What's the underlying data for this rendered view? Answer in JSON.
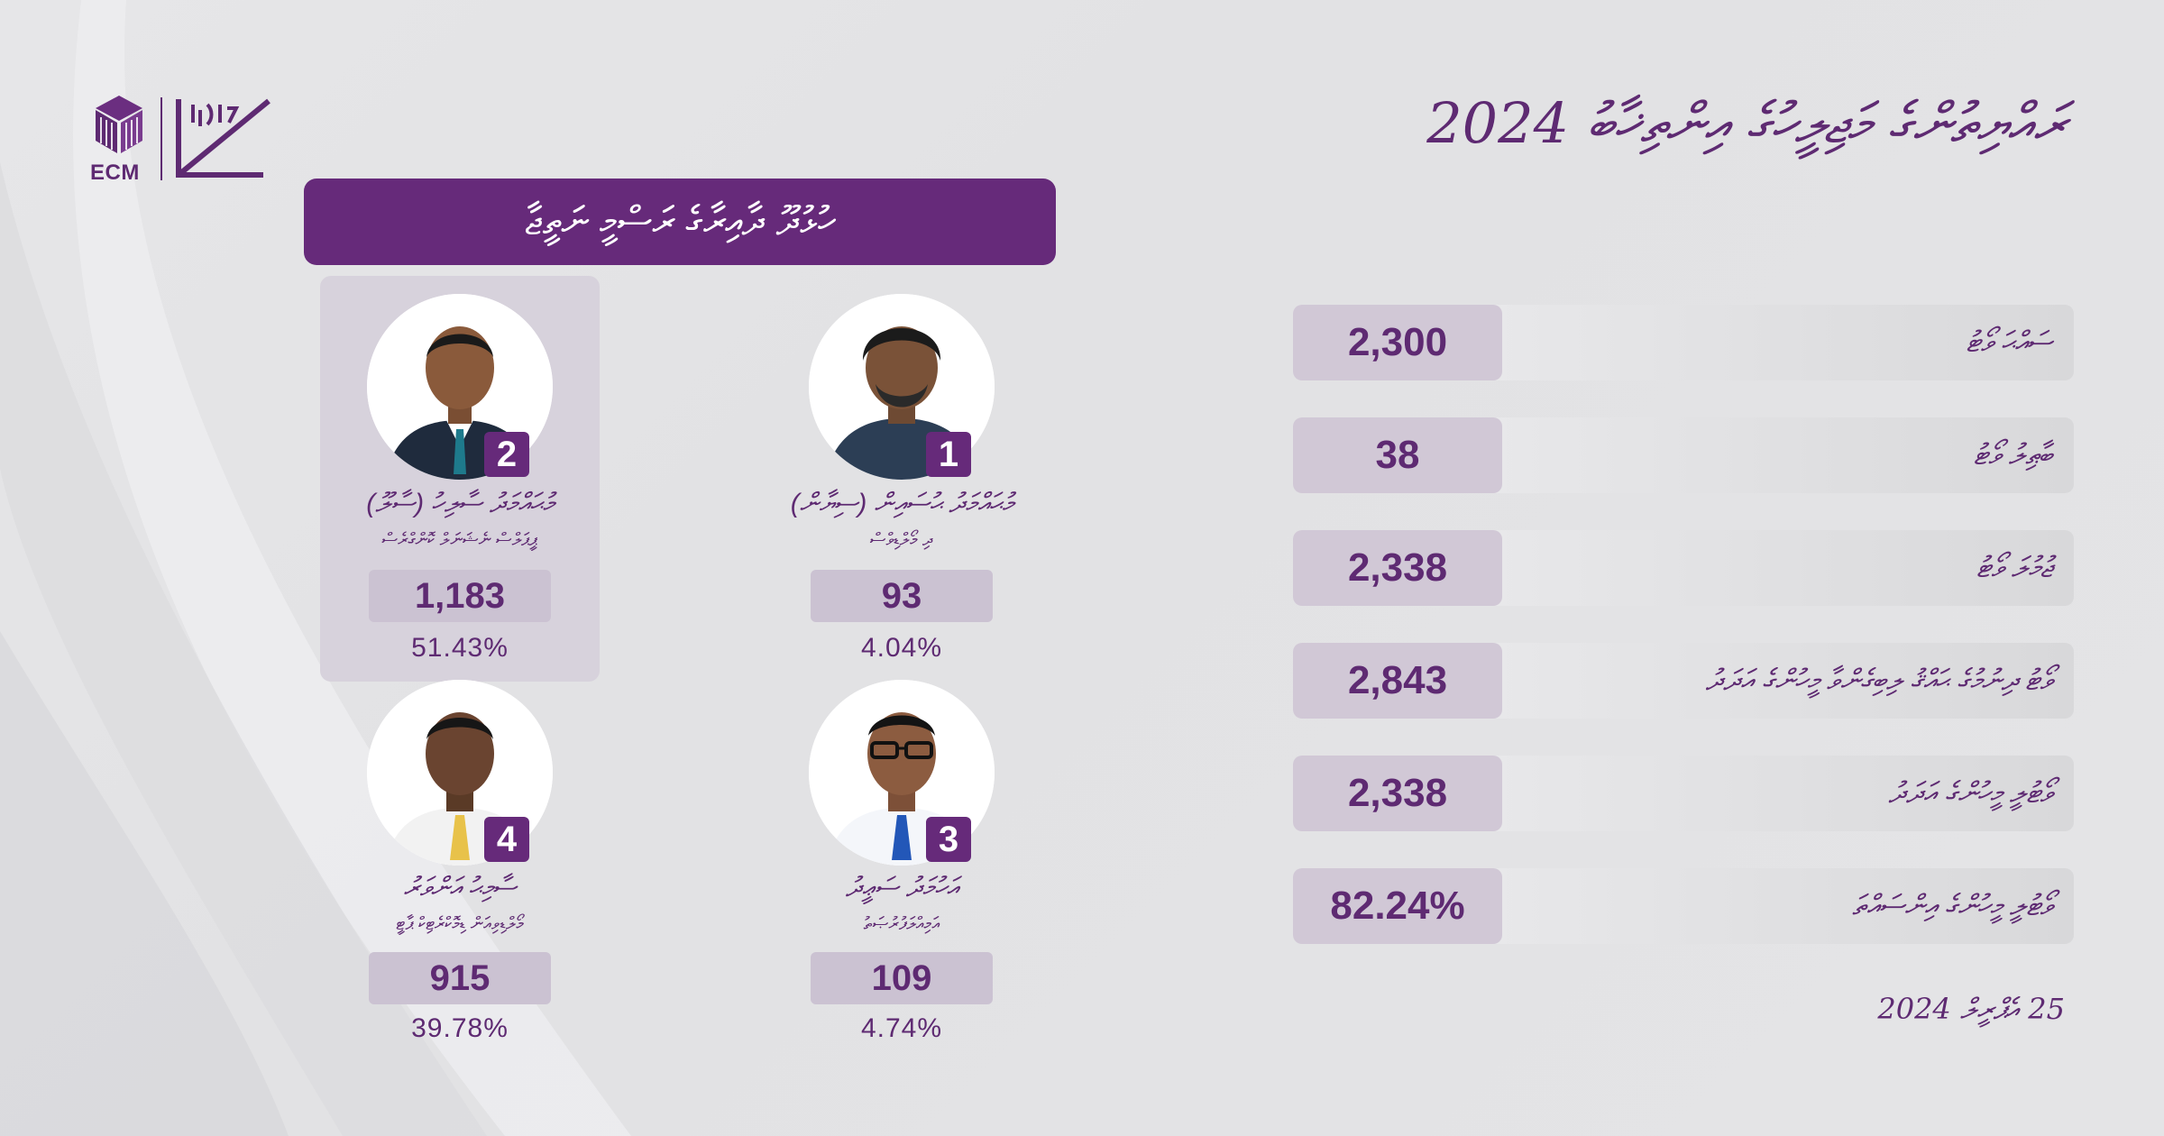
{
  "header": {
    "title": "ރައްޔިތުންގެ މަޖިލީހުގެ އިންތިޚާބު 2024",
    "banner": "ހުޅުދޫ ދާއިރާގެ ރަސްމީ ނަތީޖާ",
    "logo_text": "ECM"
  },
  "candidates": [
    {
      "number": "1",
      "name": "މުޙައްމަދު ޙުސައިން (ސިޔާން)",
      "party": "ދި މޯލްޑިވްސް",
      "votes": "93",
      "percent": "4.04%",
      "winner": false
    },
    {
      "number": "2",
      "name": "މުޙައްމަދު ސާލިހު (ސާލޫ)",
      "party": "ޕީޕަލްސް ނެޝަނަލް ކޮންގްރެސް",
      "votes": "1,183",
      "percent": "51.43%",
      "winner": true
    },
    {
      "number": "3",
      "name": "އަހުމަދު ސަޢީދު",
      "party": "އަމިއްލަފުރުޞަތު",
      "votes": "109",
      "percent": "4.74%",
      "winner": false
    },
    {
      "number": "4",
      "name": "ސާމިޙު އަންވަރު",
      "party": "މޯލްޑިވިއަން ޑިމޮކްރެޓިކް ޕާޓީ",
      "votes": "915",
      "percent": "39.78%",
      "winner": false
    }
  ],
  "stats": [
    {
      "label": "ސައްޙަ ވޯޓު",
      "value": "2,300"
    },
    {
      "label": "ބާޠިލު ވޯޓު",
      "value": "38"
    },
    {
      "label": "ޖުމުލަ ވޯޓު",
      "value": "2,338"
    },
    {
      "label": "ވޯޓު ދިނުމުގެ ޙައްޤު ލިބިގެންވާ މީހުންގެ އަދަދު",
      "value": "2,843"
    },
    {
      "label": "ވޯޓުލީ މީހުންގެ އަދަދު",
      "value": "2,338"
    },
    {
      "label": "ވޯޓުލީ މީހުންގެ އިންސައްތަ",
      "value": "82.24%"
    }
  ],
  "footer": {
    "date": "25 އެޕްރީލް 2024"
  },
  "colors": {
    "primary": "#662a7a",
    "highlight": "#d7d2dc",
    "vote_box": "#cbc2d2"
  }
}
